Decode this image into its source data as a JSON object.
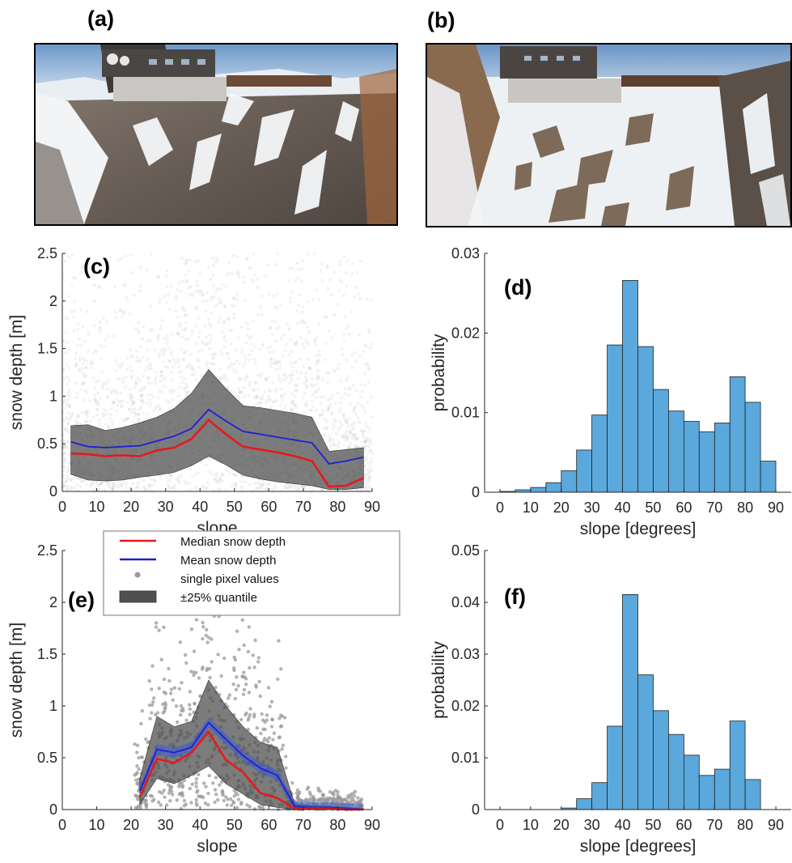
{
  "panels": {
    "a": {
      "label": "(a)"
    },
    "b": {
      "label": "(b)"
    },
    "c": {
      "label": "(c)"
    },
    "d": {
      "label": "(d)"
    },
    "e": {
      "label": "(e)"
    },
    "f": {
      "label": "(f)"
    }
  },
  "colors": {
    "median": "#e41a1c",
    "mean": "#1f1fd1",
    "quantile_band": "#505050",
    "points": "#9a9a9a",
    "bars": "#5aa8dc",
    "bar_edge": "#222222",
    "axis": "#262626"
  },
  "chart_data": [
    {
      "id": "c",
      "type": "line",
      "xlabel": "slope",
      "ylabel": "snow depth [m]",
      "xlim": [
        0,
        90
      ],
      "ylim": [
        0,
        2.5
      ],
      "xticks": [
        0,
        10,
        20,
        30,
        40,
        50,
        60,
        70,
        80,
        90
      ],
      "yticks": [
        0,
        0.5,
        1,
        1.5,
        2,
        2.5
      ],
      "ytick_labels": [
        "0",
        "0.5",
        "1",
        "1.5",
        "2",
        "2.5"
      ],
      "x": [
        2.5,
        7.5,
        12.5,
        17.5,
        22.5,
        27.5,
        32.5,
        37.5,
        42.5,
        47.5,
        52.5,
        57.5,
        62.5,
        67.5,
        72.5,
        77.5,
        82.5,
        87.5
      ],
      "series": [
        {
          "name": "Median snow depth",
          "values": [
            0.4,
            0.39,
            0.37,
            0.38,
            0.37,
            0.43,
            0.46,
            0.55,
            0.75,
            0.6,
            0.47,
            0.44,
            0.41,
            0.37,
            0.32,
            0.05,
            0.06,
            0.14
          ]
        },
        {
          "name": "Mean snow depth",
          "values": [
            0.52,
            0.47,
            0.46,
            0.47,
            0.48,
            0.53,
            0.58,
            0.66,
            0.86,
            0.74,
            0.63,
            0.6,
            0.57,
            0.54,
            0.51,
            0.29,
            0.32,
            0.36
          ]
        },
        {
          "name": "±25% quantile",
          "lower": [
            0.18,
            0.12,
            0.11,
            0.12,
            0.15,
            0.17,
            0.2,
            0.27,
            0.37,
            0.28,
            0.17,
            0.13,
            0.1,
            0.08,
            0.06,
            0.02,
            0.02,
            0.04
          ],
          "upper": [
            0.69,
            0.7,
            0.64,
            0.67,
            0.72,
            0.78,
            0.87,
            1.03,
            1.28,
            1.08,
            0.9,
            0.88,
            0.85,
            0.82,
            0.78,
            0.42,
            0.44,
            0.46
          ]
        }
      ]
    },
    {
      "id": "d",
      "type": "bar",
      "xlabel": "slope [degrees]",
      "ylabel": "probability",
      "xlim": [
        -5,
        95
      ],
      "ylim": [
        0,
        0.03
      ],
      "xticks": [
        0,
        10,
        20,
        30,
        40,
        50,
        60,
        70,
        80,
        90
      ],
      "yticks": [
        0,
        0.01,
        0.02,
        0.03
      ],
      "ytick_labels": [
        "0",
        "0.01",
        "0.02",
        "0.03"
      ],
      "bin_width": 5,
      "bin_starts": [
        0,
        5,
        10,
        15,
        20,
        25,
        30,
        35,
        40,
        45,
        50,
        55,
        60,
        65,
        70,
        75,
        80,
        85
      ],
      "values": [
        0.0001,
        0.0003,
        0.0006,
        0.0012,
        0.0027,
        0.0053,
        0.0097,
        0.0185,
        0.0266,
        0.0183,
        0.0129,
        0.0102,
        0.0089,
        0.0076,
        0.0087,
        0.0145,
        0.0113,
        0.0039
      ]
    },
    {
      "id": "e",
      "type": "line",
      "xlabel": "slope",
      "ylabel": "snow depth [m]",
      "xlim": [
        0,
        90
      ],
      "ylim": [
        0,
        2.5
      ],
      "xticks": [
        0,
        10,
        20,
        30,
        40,
        50,
        60,
        70,
        80,
        90
      ],
      "yticks": [
        0,
        0.5,
        1,
        1.5,
        2,
        2.5
      ],
      "ytick_labels": [
        "0",
        "0.5",
        "1",
        "1.5",
        "2",
        "2.5"
      ],
      "legend": [
        "Median snow depth",
        "Mean snow depth",
        "single pixel values",
        "±25% quantile"
      ],
      "legend_position": "top-left",
      "x": [
        22.5,
        27.5,
        32.5,
        37.5,
        42.5,
        47.5,
        52.5,
        57.5,
        62.5,
        67.5,
        72.5,
        77.5,
        82.5,
        87.5
      ],
      "series": [
        {
          "name": "Median snow depth",
          "values": [
            0.12,
            0.49,
            0.45,
            0.55,
            0.75,
            0.48,
            0.36,
            0.16,
            0.11,
            0.01,
            0.01,
            0.01,
            0.0,
            0.0
          ]
        },
        {
          "name": "Mean snow depth",
          "values": [
            0.18,
            0.58,
            0.55,
            0.6,
            0.84,
            0.68,
            0.52,
            0.4,
            0.33,
            0.03,
            0.02,
            0.02,
            0.01,
            0.0
          ]
        },
        {
          "name": "±25% quantile",
          "lower": [
            0.05,
            0.3,
            0.25,
            0.33,
            0.42,
            0.25,
            0.15,
            0.05,
            0.02,
            0.0,
            0.0,
            0.0,
            0.0,
            0.0
          ],
          "upper": [
            0.3,
            0.9,
            0.8,
            0.85,
            1.25,
            1.0,
            0.8,
            0.65,
            0.6,
            0.05,
            0.04,
            0.03,
            0.02,
            0.01
          ]
        }
      ]
    },
    {
      "id": "f",
      "type": "bar",
      "xlabel": "slope [degrees]",
      "ylabel": "probability",
      "xlim": [
        -5,
        95
      ],
      "ylim": [
        0,
        0.05
      ],
      "xticks": [
        0,
        10,
        20,
        30,
        40,
        50,
        60,
        70,
        80,
        90
      ],
      "yticks": [
        0,
        0.01,
        0.02,
        0.03,
        0.04,
        0.05
      ],
      "ytick_labels": [
        "0",
        "0.01",
        "0.02",
        "0.03",
        "0.04",
        "0.05"
      ],
      "bin_width": 5,
      "bin_starts": [
        20,
        25,
        30,
        35,
        40,
        45,
        50,
        55,
        60,
        65,
        70,
        75,
        80
      ],
      "values": [
        0.0003,
        0.0021,
        0.0052,
        0.0161,
        0.0415,
        0.026,
        0.0191,
        0.0145,
        0.0105,
        0.0066,
        0.0078,
        0.0171,
        0.0058
      ]
    }
  ]
}
